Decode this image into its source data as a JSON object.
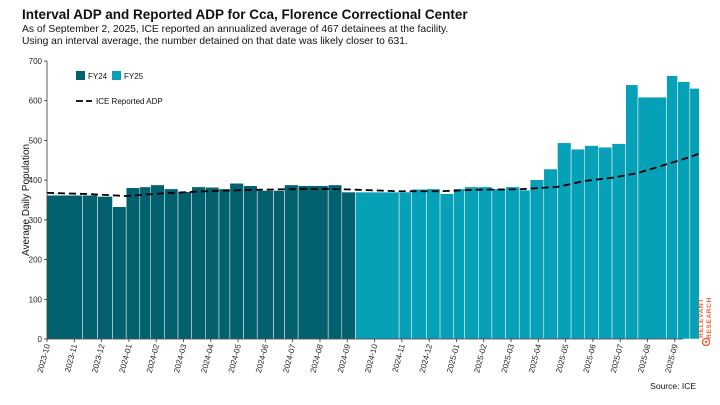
{
  "header": {
    "title": "Interval ADP and Reported ADP for Cca, Florence Correctional Center",
    "subtitle_line1": "As of September 2, 2025, ICE reported an annualized average of 467 detainees at the facility.",
    "subtitle_line2": "Using an interval average, the number detained on that date was likely closer to 631."
  },
  "footer": {
    "source": "Source: ICE"
  },
  "brand": {
    "line1": "RELEVANT",
    "line2": "RESEARCH",
    "color": "#e8643c"
  },
  "chart_data": {
    "type": "bar",
    "title": "Interval ADP and Reported ADP for Cca, Florence Correctional Center",
    "xlabel": "",
    "ylabel": "Average Daily Population",
    "ylim": [
      0,
      700
    ],
    "yticks": [
      0,
      100,
      200,
      300,
      400,
      500,
      600,
      700
    ],
    "xlim_months": [
      0,
      23.3
    ],
    "month_ticks": [
      "2023-10",
      "2023-11",
      "2023-12",
      "2024-01",
      "2024-02",
      "2024-03",
      "2024-04",
      "2024-05",
      "2024-06",
      "2024-07",
      "2024-08",
      "2024-09",
      "2024-10",
      "2024-11",
      "2024-12",
      "2025-01",
      "2025-02",
      "2025-03",
      "2025-04",
      "2025-05",
      "2025-06",
      "2025-07",
      "2025-08",
      "2025-09"
    ],
    "legend": {
      "position": "top-left",
      "entries": [
        "FY24",
        "FY25",
        "ICE Reported ADP"
      ]
    },
    "colors": {
      "FY24": "#02606f",
      "FY25": "#07a1b7",
      "reported_line": "#000000"
    },
    "series": [
      {
        "name": "FY24",
        "bars": [
          {
            "start": 0.0,
            "end": 1.3,
            "value": 362
          },
          {
            "start": 1.3,
            "end": 1.85,
            "value": 362
          },
          {
            "start": 1.85,
            "end": 2.4,
            "value": 359
          },
          {
            "start": 2.4,
            "end": 2.9,
            "value": 333
          },
          {
            "start": 2.9,
            "end": 3.4,
            "value": 381
          },
          {
            "start": 3.4,
            "end": 3.8,
            "value": 383
          },
          {
            "start": 3.8,
            "end": 4.3,
            "value": 388
          },
          {
            "start": 4.3,
            "end": 4.8,
            "value": 378
          },
          {
            "start": 4.8,
            "end": 5.3,
            "value": 371
          },
          {
            "start": 5.3,
            "end": 5.8,
            "value": 383
          },
          {
            "start": 5.8,
            "end": 6.3,
            "value": 382
          },
          {
            "start": 6.3,
            "end": 6.7,
            "value": 378
          },
          {
            "start": 6.7,
            "end": 7.2,
            "value": 392
          },
          {
            "start": 7.2,
            "end": 7.7,
            "value": 386
          },
          {
            "start": 7.7,
            "end": 8.3,
            "value": 374
          },
          {
            "start": 8.3,
            "end": 8.7,
            "value": 374
          },
          {
            "start": 8.7,
            "end": 9.2,
            "value": 388
          },
          {
            "start": 9.2,
            "end": 10.3,
            "value": 386
          },
          {
            "start": 10.3,
            "end": 10.8,
            "value": 388
          },
          {
            "start": 10.8,
            "end": 11.3,
            "value": 370
          }
        ]
      },
      {
        "name": "FY25",
        "bars": [
          {
            "start": 11.3,
            "end": 12.9,
            "value": 370
          },
          {
            "start": 12.9,
            "end": 13.35,
            "value": 370
          },
          {
            "start": 13.35,
            "end": 13.9,
            "value": 377
          },
          {
            "start": 13.9,
            "end": 14.4,
            "value": 378
          },
          {
            "start": 14.4,
            "end": 14.9,
            "value": 366
          },
          {
            "start": 14.9,
            "end": 15.3,
            "value": 378
          },
          {
            "start": 15.3,
            "end": 15.8,
            "value": 383
          },
          {
            "start": 15.8,
            "end": 16.3,
            "value": 383
          },
          {
            "start": 16.3,
            "end": 16.8,
            "value": 378
          },
          {
            "start": 16.8,
            "end": 17.3,
            "value": 383
          },
          {
            "start": 17.3,
            "end": 17.7,
            "value": 375
          },
          {
            "start": 17.7,
            "end": 18.2,
            "value": 401
          },
          {
            "start": 18.2,
            "end": 18.7,
            "value": 428
          },
          {
            "start": 18.7,
            "end": 19.2,
            "value": 494
          },
          {
            "start": 19.2,
            "end": 19.7,
            "value": 478
          },
          {
            "start": 19.7,
            "end": 20.2,
            "value": 487
          },
          {
            "start": 20.2,
            "end": 20.7,
            "value": 483
          },
          {
            "start": 20.7,
            "end": 21.2,
            "value": 492
          },
          {
            "start": 21.2,
            "end": 21.65,
            "value": 640
          },
          {
            "start": 21.65,
            "end": 22.7,
            "value": 609
          },
          {
            "start": 22.7,
            "end": 23.1,
            "value": 663
          },
          {
            "start": 23.1,
            "end": 23.55,
            "value": 648
          },
          {
            "start": 23.55,
            "end": 23.9,
            "value": 631
          }
        ]
      },
      {
        "name": "ICE Reported ADP",
        "style": "dashed-line",
        "points": [
          {
            "t": 0.0,
            "value": 368
          },
          {
            "t": 1.5,
            "value": 365
          },
          {
            "t": 2.9,
            "value": 360
          },
          {
            "t": 4.3,
            "value": 367
          },
          {
            "t": 5.8,
            "value": 372
          },
          {
            "t": 7.2,
            "value": 375
          },
          {
            "t": 8.7,
            "value": 377
          },
          {
            "t": 10.3,
            "value": 378
          },
          {
            "t": 11.3,
            "value": 376
          },
          {
            "t": 12.9,
            "value": 372
          },
          {
            "t": 14.4,
            "value": 372
          },
          {
            "t": 15.8,
            "value": 376
          },
          {
            "t": 17.3,
            "value": 377
          },
          {
            "t": 18.7,
            "value": 383
          },
          {
            "t": 19.7,
            "value": 398
          },
          {
            "t": 20.7,
            "value": 406
          },
          {
            "t": 21.65,
            "value": 418
          },
          {
            "t": 22.7,
            "value": 440
          },
          {
            "t": 23.55,
            "value": 458
          },
          {
            "t": 23.9,
            "value": 467
          }
        ]
      }
    ]
  }
}
